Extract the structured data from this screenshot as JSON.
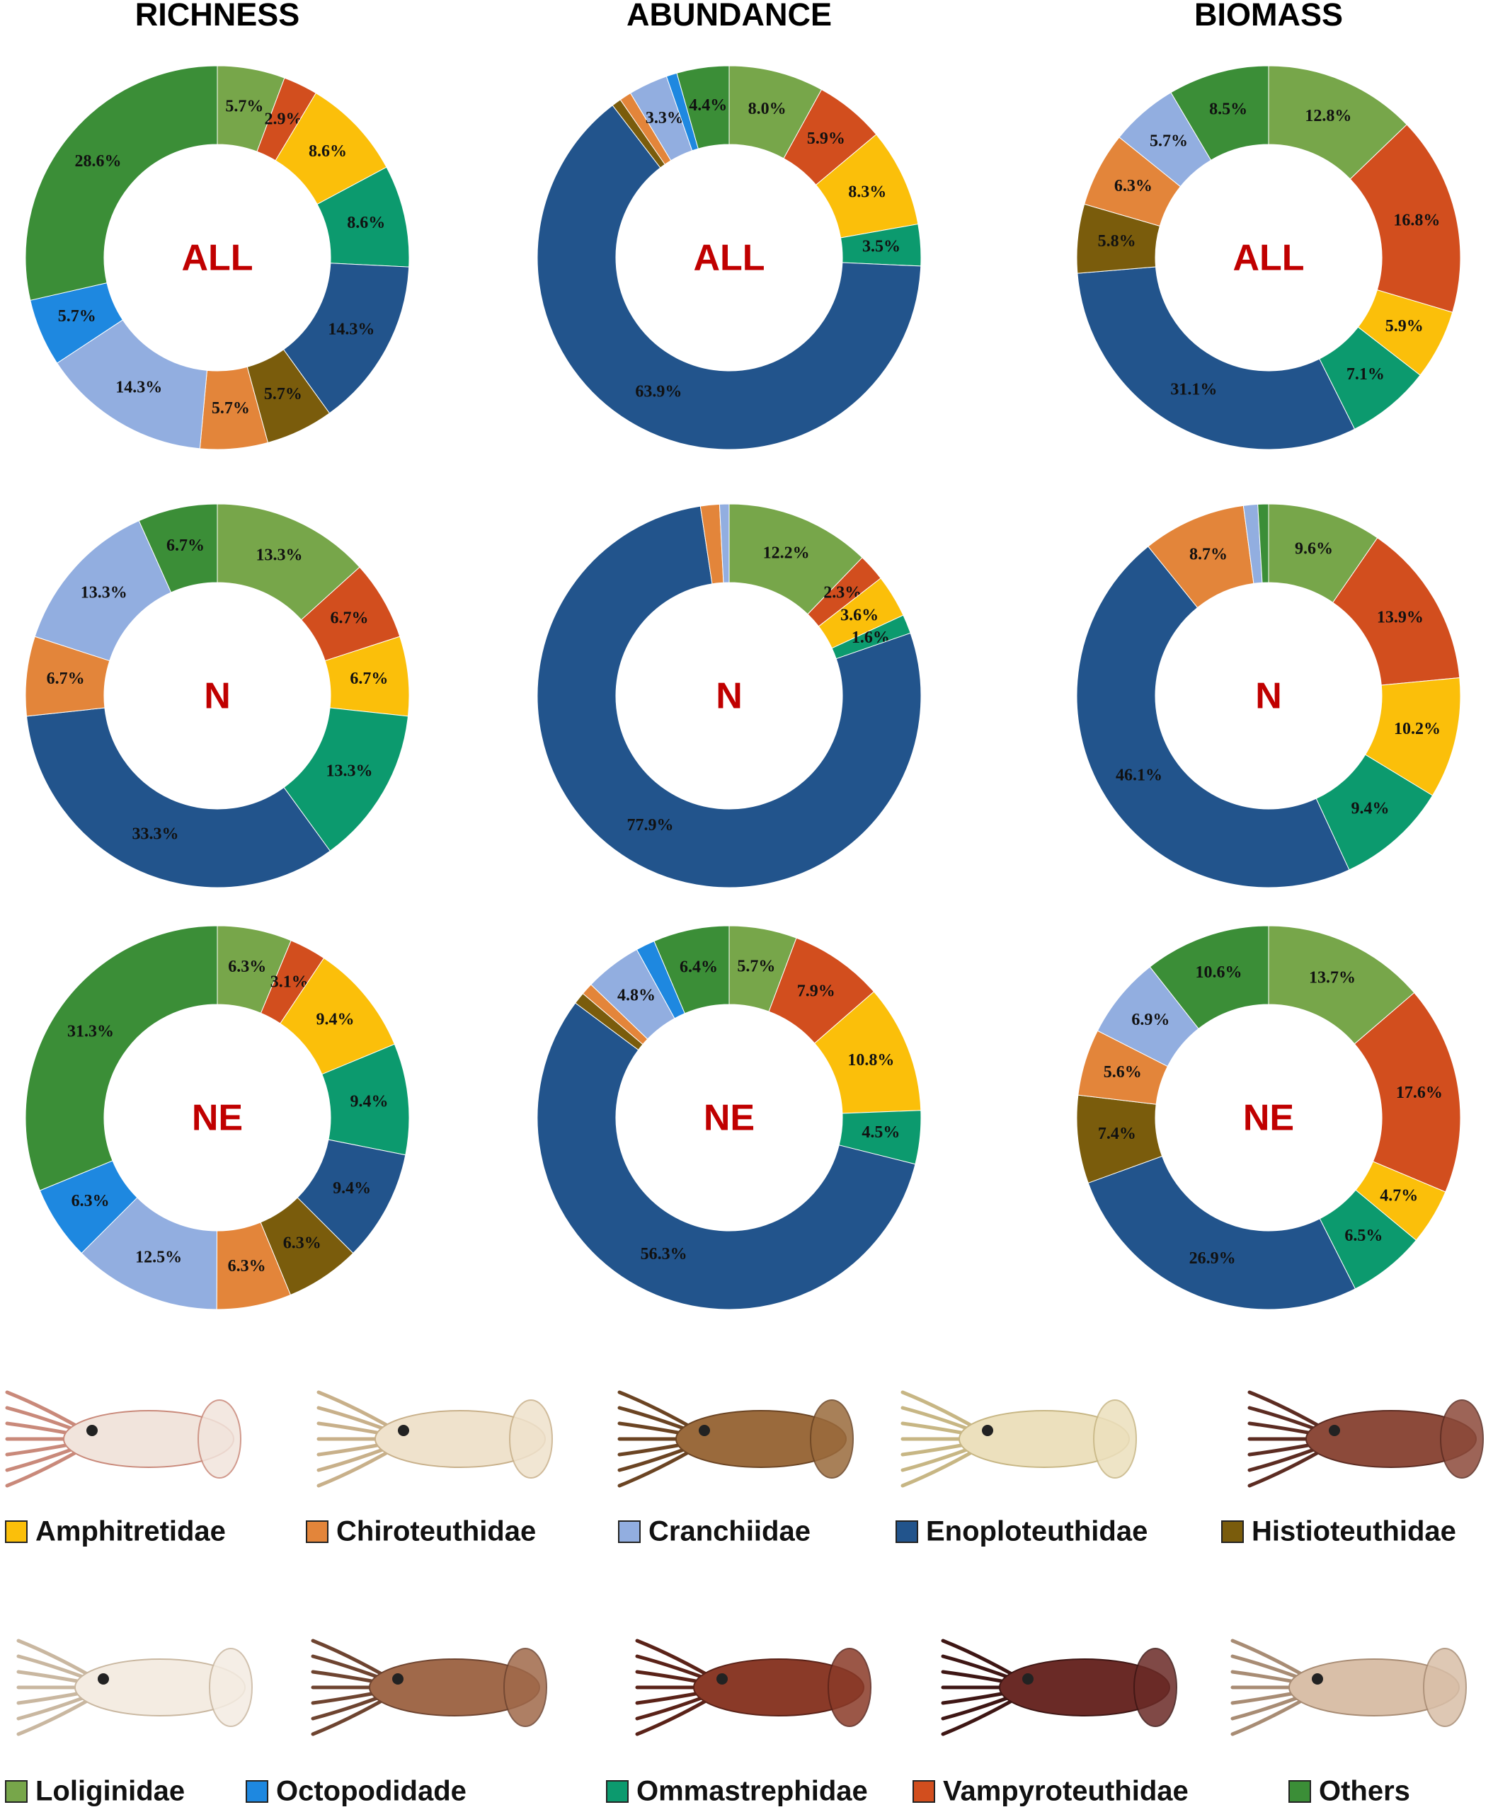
{
  "column_titles": [
    "RICHNESS",
    "ABUNDANCE",
    "BIOMASS"
  ],
  "legend": {
    "categories": [
      "Loliginidae",
      "Vampyroteuthidae",
      "Amphitretidae",
      "Ommastrephidae",
      "Enoploteuthidae",
      "Histioteuthidae",
      "Chiroteuthidae",
      "Cranchiidae",
      "Octopodidade",
      "Others"
    ],
    "colors": [
      "#77a64a",
      "#d24e1e",
      "#fbbf0a",
      "#0c9a6e",
      "#22548c",
      "#7a5c0c",
      "#e3853a",
      "#92aee0",
      "#1e88e0",
      "#3b8e37"
    ]
  },
  "chart_data": [
    {
      "type": "donut",
      "center_label": "ALL",
      "values": [
        5.7,
        2.9,
        8.6,
        8.6,
        14.3,
        5.7,
        5.7,
        14.3,
        5.7,
        28.6
      ],
      "value_labels": [
        "5.7%",
        "2.9%",
        "8.6%",
        "8.6%",
        "14.3%",
        "5.7%",
        "5.7%",
        "14.3%",
        "5.7%",
        "28.6%"
      ]
    },
    {
      "type": "donut",
      "center_label": "ALL",
      "values": [
        8.0,
        5.9,
        8.3,
        3.5,
        63.9,
        0.8,
        1.0,
        3.3,
        0.9,
        4.4
      ],
      "value_labels": [
        "8.0%",
        "5.9%",
        "8.3%",
        "3.5%",
        "63.9%",
        null,
        null,
        "3.3%",
        null,
        "4.4%"
      ]
    },
    {
      "type": "donut",
      "center_label": "ALL",
      "values": [
        12.8,
        16.8,
        5.9,
        7.1,
        31.1,
        5.8,
        6.3,
        5.7,
        0,
        8.5
      ],
      "value_labels": [
        "12.8%",
        "16.8%",
        "5.9%",
        "7.1%",
        "31.1%",
        "5.8%",
        "6.3%",
        "5.7%",
        null,
        "8.5%"
      ]
    },
    {
      "type": "donut",
      "center_label": "N",
      "values": [
        13.3,
        6.7,
        6.7,
        13.3,
        33.3,
        0,
        6.7,
        13.3,
        0,
        6.7
      ],
      "value_labels": [
        "13.3%",
        "6.7%",
        "6.7%",
        "13.3%",
        "33.3%",
        null,
        "6.7%",
        "13.3%",
        null,
        "6.7%"
      ]
    },
    {
      "type": "donut",
      "center_label": "N",
      "values": [
        12.2,
        2.3,
        3.6,
        1.6,
        77.9,
        0,
        1.6,
        0.8,
        0,
        0
      ],
      "value_labels": [
        "12.2%",
        "2.3%",
        "3.6%",
        "1.6%",
        "77.9%",
        null,
        null,
        null,
        null,
        null
      ]
    },
    {
      "type": "donut",
      "center_label": "N",
      "values": [
        9.6,
        13.9,
        10.2,
        9.4,
        46.1,
        0,
        8.7,
        1.2,
        0,
        0.9
      ],
      "value_labels": [
        "9.6%",
        "13.9%",
        "10.2%",
        "9.4%",
        "46.1%",
        null,
        "8.7%",
        null,
        null,
        null
      ]
    },
    {
      "type": "donut",
      "center_label": "NE",
      "values": [
        6.3,
        3.1,
        9.4,
        9.4,
        9.4,
        6.3,
        6.3,
        12.5,
        6.3,
        31.3
      ],
      "value_labels": [
        "6.3%",
        "3.1%",
        "9.4%",
        "9.4%",
        "9.4%",
        "6.3%",
        "6.3%",
        "12.5%",
        "6.3%",
        "31.3%"
      ]
    },
    {
      "type": "donut",
      "center_label": "NE",
      "values": [
        5.7,
        7.9,
        10.8,
        4.5,
        56.3,
        1.0,
        1.0,
        4.8,
        1.6,
        6.4
      ],
      "value_labels": [
        "5.7%",
        "7.9%",
        "10.8%",
        "4.5%",
        "56.3%",
        null,
        null,
        "4.8%",
        null,
        "6.4%"
      ]
    },
    {
      "type": "donut",
      "center_label": "NE",
      "values": [
        13.7,
        17.6,
        4.7,
        6.5,
        26.9,
        7.4,
        5.6,
        6.9,
        0,
        10.6
      ],
      "value_labels": [
        "13.7%",
        "17.6%",
        "4.7%",
        "6.5%",
        "26.9%",
        "7.4%",
        "5.6%",
        "6.9%",
        null,
        "10.6%"
      ]
    }
  ]
}
